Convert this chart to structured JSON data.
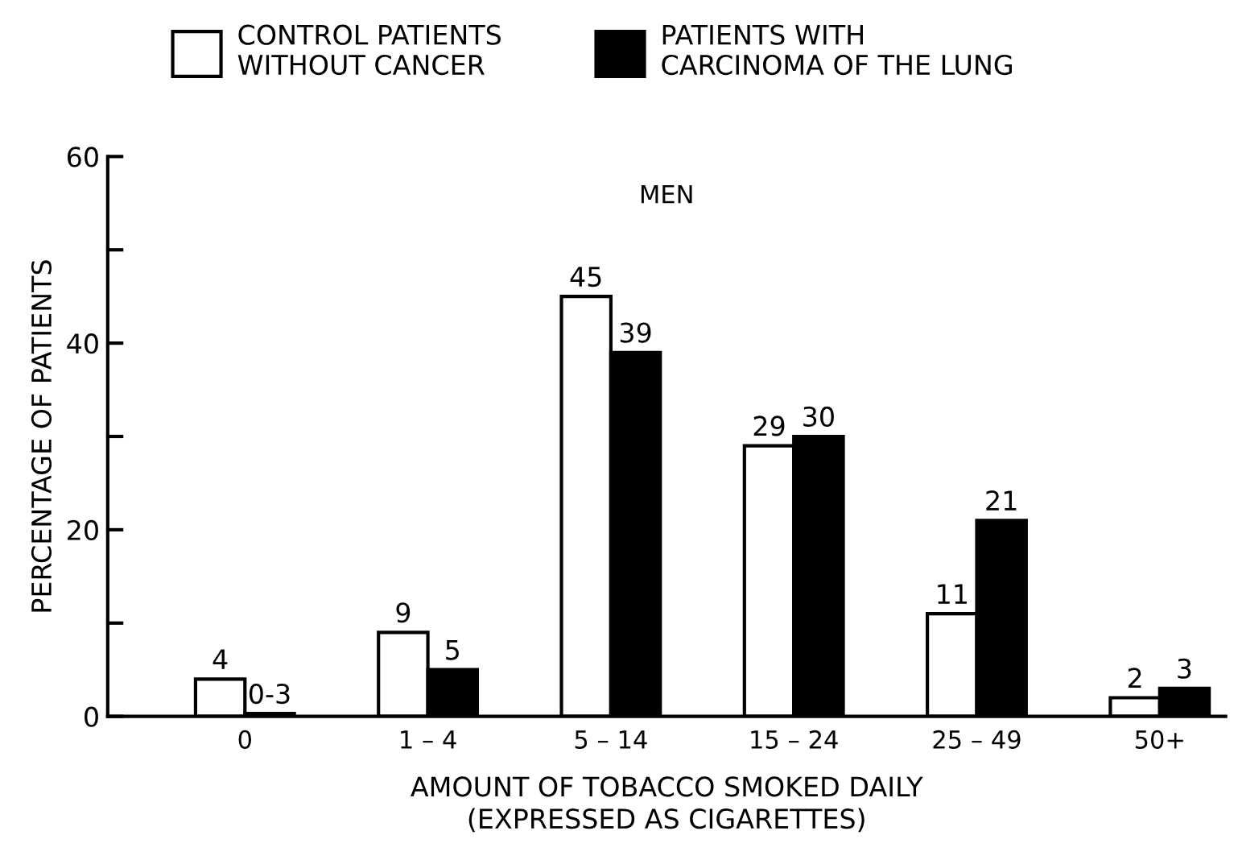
{
  "chart_data": {
    "type": "bar",
    "title": "MEN",
    "xlabel": "AMOUNT OF TOBACCO SMOKED DAILY\n(EXPRESSED AS CIGARETTES)",
    "ylabel": "PERCENTAGE OF PATIENTS",
    "categories": [
      "0",
      "1 – 4",
      "5 – 14",
      "15 – 24",
      "25 – 49",
      "50+"
    ],
    "series": [
      {
        "name": "CONTROL PATIENTS\nWITHOUT CANCER",
        "color": "#ffffff",
        "values": [
          4,
          9,
          45,
          29,
          11,
          2
        ],
        "value_labels": [
          "4",
          "9",
          "45",
          "29",
          "11",
          "2"
        ]
      },
      {
        "name": "PATIENTS WITH\nCARCINOMA OF THE LUNG",
        "color": "#000000",
        "values": [
          0.3,
          5,
          39,
          30,
          21,
          3
        ],
        "value_labels": [
          "0-3",
          "5",
          "39",
          "30",
          "21",
          "3"
        ]
      }
    ],
    "ylim": [
      0,
      60
    ],
    "yticks": [
      0,
      {
        "value": 10,
        "label": null
      },
      20,
      {
        "value": 30,
        "label": null
      },
      40,
      {
        "value": 50,
        "label": null
      },
      60
    ],
    "grid": false,
    "legend": "top"
  }
}
